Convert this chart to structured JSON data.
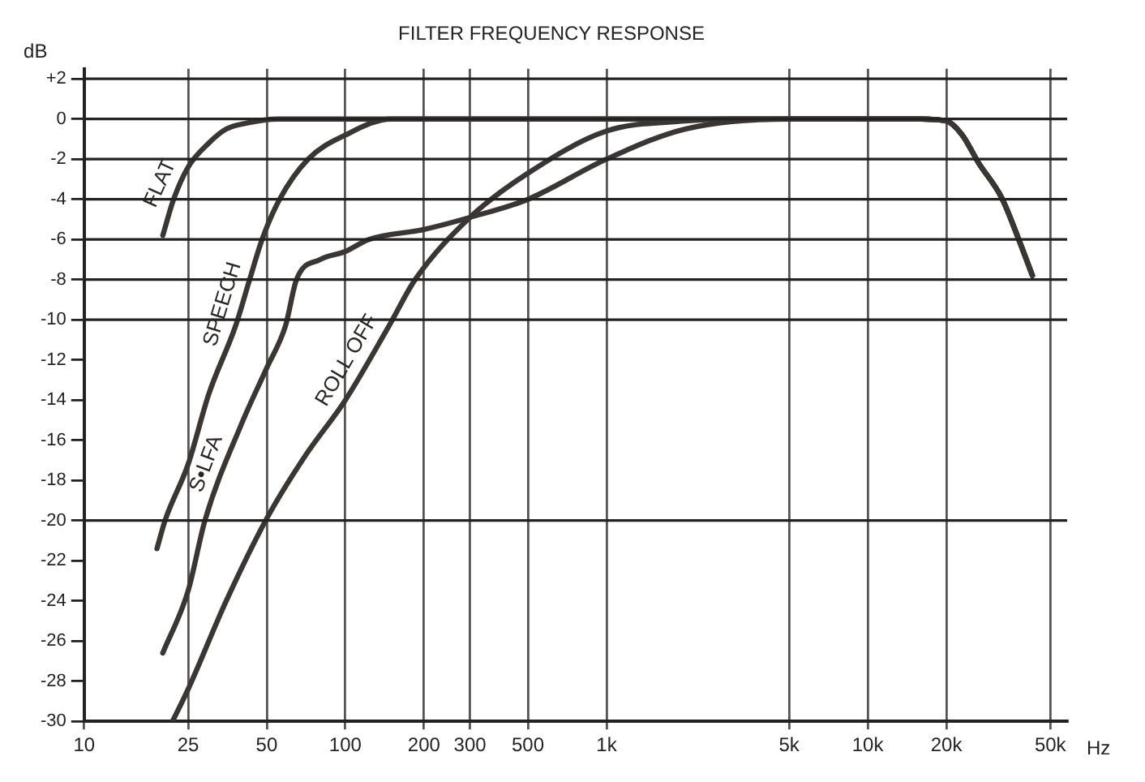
{
  "chart_data": {
    "type": "line",
    "title": "FILTER FREQUENCY RESPONSE",
    "xlabel": "Hz",
    "ylabel": "dB",
    "log": "x",
    "grid": "x",
    "legend": false,
    "marker": "none",
    "line_style": "solid",
    "xlim": [
      10,
      58000
    ],
    "xticks": [
      10,
      25,
      50,
      100,
      200,
      300,
      500,
      {
        "value": 1000,
        "label": "1k"
      },
      {
        "value": 5000,
        "label": "5k"
      },
      {
        "value": 10000,
        "label": "10k"
      },
      {
        "value": 20000,
        "label": "20k"
      },
      {
        "value": 50000,
        "label": "50k"
      }
    ],
    "ylim": [
      -30,
      2.5
    ],
    "yticks": [
      {
        "value": 2,
        "label": "+2"
      },
      0,
      -2,
      -4,
      -6,
      -8,
      -10,
      -12,
      -14,
      -16,
      -18,
      -20,
      -22,
      -24,
      -26,
      -28,
      -30
    ],
    "ref_lines": [
      {
        "axis": "y",
        "value": 2
      },
      {
        "axis": "y",
        "value": 0
      },
      {
        "axis": "y",
        "value": -2
      },
      {
        "axis": "y",
        "value": -4
      },
      {
        "axis": "y",
        "value": -6
      },
      {
        "axis": "y",
        "value": -8
      },
      {
        "axis": "y",
        "value": -10
      },
      {
        "axis": "y",
        "value": -20
      }
    ],
    "series": [
      {
        "name": "FLAT",
        "color": "#3a3634",
        "x": [
          20,
          22,
          25,
          30,
          35,
          42,
          55,
          1000,
          10000,
          16000,
          20000,
          23000,
          26600,
          32500,
          37600,
          42700
        ],
        "values": [
          -5.8,
          -4,
          -2.4,
          -1.2,
          -0.5,
          -0.2,
          0,
          0,
          0,
          0,
          -0.1,
          -0.8,
          -2.2,
          -3.9,
          -5.9,
          -7.8
        ]
      },
      {
        "name": "SPEECH",
        "color": "#3a3634",
        "x": [
          19,
          20.4,
          25,
          30,
          38,
          43,
          48,
          56,
          72,
          100,
          150,
          1000,
          10000,
          16000,
          20000,
          23000,
          26600,
          32500,
          37600,
          42700
        ],
        "values": [
          -21.4,
          -20,
          -17.2,
          -13.7,
          -10.3,
          -8,
          -6,
          -4,
          -2,
          -0.8,
          0,
          0,
          0,
          0,
          -0.1,
          -0.8,
          -2.2,
          -3.9,
          -5.9,
          -7.8
        ]
      },
      {
        "name": "S•LFA",
        "color": "#3a3634",
        "x": [
          20,
          25,
          29,
          40,
          50,
          59,
          65,
          80,
          100,
          123,
          200,
          300,
          500,
          1000,
          2000,
          5000,
          10000,
          16000,
          20000,
          23000,
          26600,
          32500,
          37600,
          42700
        ],
        "values": [
          -26.6,
          -23.5,
          -20,
          -15.2,
          -12.4,
          -10.3,
          -8,
          -7,
          -6.6,
          -6,
          -5.5,
          -4.9,
          -4,
          -2,
          -0.5,
          0,
          0,
          0,
          -0.1,
          -0.8,
          -2.2,
          -3.9,
          -5.9,
          -7.8
        ]
      },
      {
        "name": "ROLL OFF",
        "color": "#3a3634",
        "x": [
          21.8,
          25,
          35,
          50,
          70,
          100,
          147,
          185,
          300,
          500,
          1000,
          2000,
          3000,
          10000,
          16000,
          20000,
          23000,
          26600,
          32500,
          37600,
          42700
        ],
        "values": [
          -30,
          -28.4,
          -24,
          -19.9,
          -16.8,
          -14,
          -10.3,
          -8,
          -4.9,
          -2.7,
          -0.6,
          -0.1,
          0,
          0,
          0,
          -0.1,
          -0.8,
          -2.2,
          -3.9,
          -5.9,
          -7.8
        ]
      }
    ]
  }
}
